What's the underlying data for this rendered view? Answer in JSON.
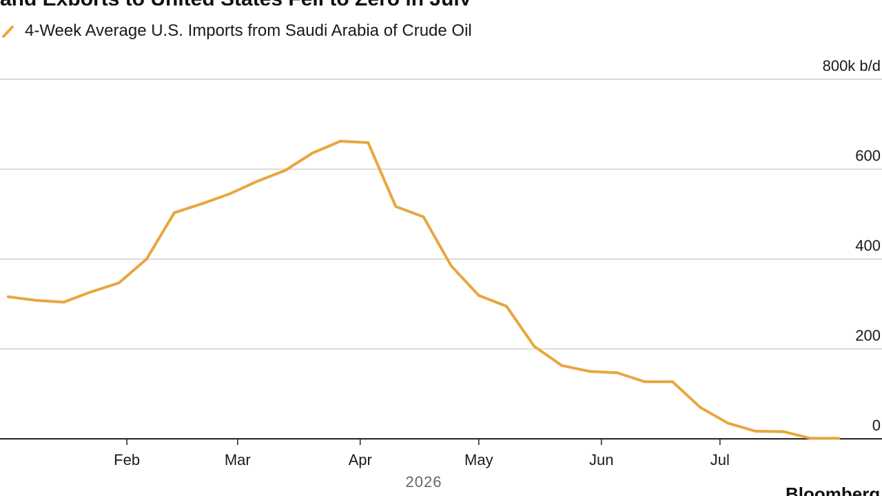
{
  "header": {
    "title_partial": "and Exports to United States Fell to Zero in July"
  },
  "legend": {
    "label": "4-Week Average U.S. Imports from Saudi Arabia of Crude Oil",
    "icon": "diagonal-line-icon"
  },
  "footer": {
    "source_partial": "Bloomberg"
  },
  "colors": {
    "series": "#E9A63E",
    "grid": "#cfcfcf",
    "axis": "#222222",
    "year_text": "#666666"
  },
  "chart_data": {
    "type": "line",
    "title": "",
    "xlabel": "2026",
    "ylabel": "",
    "y_unit_label": "800k b/d",
    "ylim": [
      0,
      800
    ],
    "y_ticks": [
      0,
      200,
      400,
      600,
      800
    ],
    "y_tick_labels": [
      "0",
      "200",
      "400",
      "600",
      "800k b/d"
    ],
    "x_range": [
      "2026-01-01",
      "2026-07-31"
    ],
    "x_ticks": [
      "2026-02-01",
      "2026-03-01",
      "2026-04-01",
      "2026-05-01",
      "2026-06-01",
      "2026-07-01"
    ],
    "x_tick_labels": [
      "Feb",
      "Mar",
      "Apr",
      "May",
      "Jun",
      "Jul"
    ],
    "grid": true,
    "legend_position": "top-left",
    "series": [
      {
        "name": "4-Week Average U.S. Imports from Saudi Arabia of Crude Oil",
        "x": [
          "2026-01-02",
          "2026-01-09",
          "2026-01-16",
          "2026-01-23",
          "2026-01-30",
          "2026-02-06",
          "2026-02-13",
          "2026-02-20",
          "2026-02-27",
          "2026-03-06",
          "2026-03-13",
          "2026-03-20",
          "2026-03-27",
          "2026-04-03",
          "2026-04-10",
          "2026-04-17",
          "2026-04-24",
          "2026-05-01",
          "2026-05-08",
          "2026-05-15",
          "2026-05-22",
          "2026-05-29",
          "2026-06-05",
          "2026-06-12",
          "2026-06-19",
          "2026-06-26",
          "2026-07-03",
          "2026-07-10",
          "2026-07-17",
          "2026-07-24",
          "2026-07-31"
        ],
        "values": [
          316,
          308,
          304,
          327,
          347,
          400,
          503,
          523,
          545,
          573,
          597,
          636,
          662,
          659,
          517,
          494,
          385,
          319,
          295,
          206,
          163,
          150,
          147,
          127,
          127,
          70,
          35,
          17,
          16,
          1,
          1
        ]
      }
    ]
  }
}
